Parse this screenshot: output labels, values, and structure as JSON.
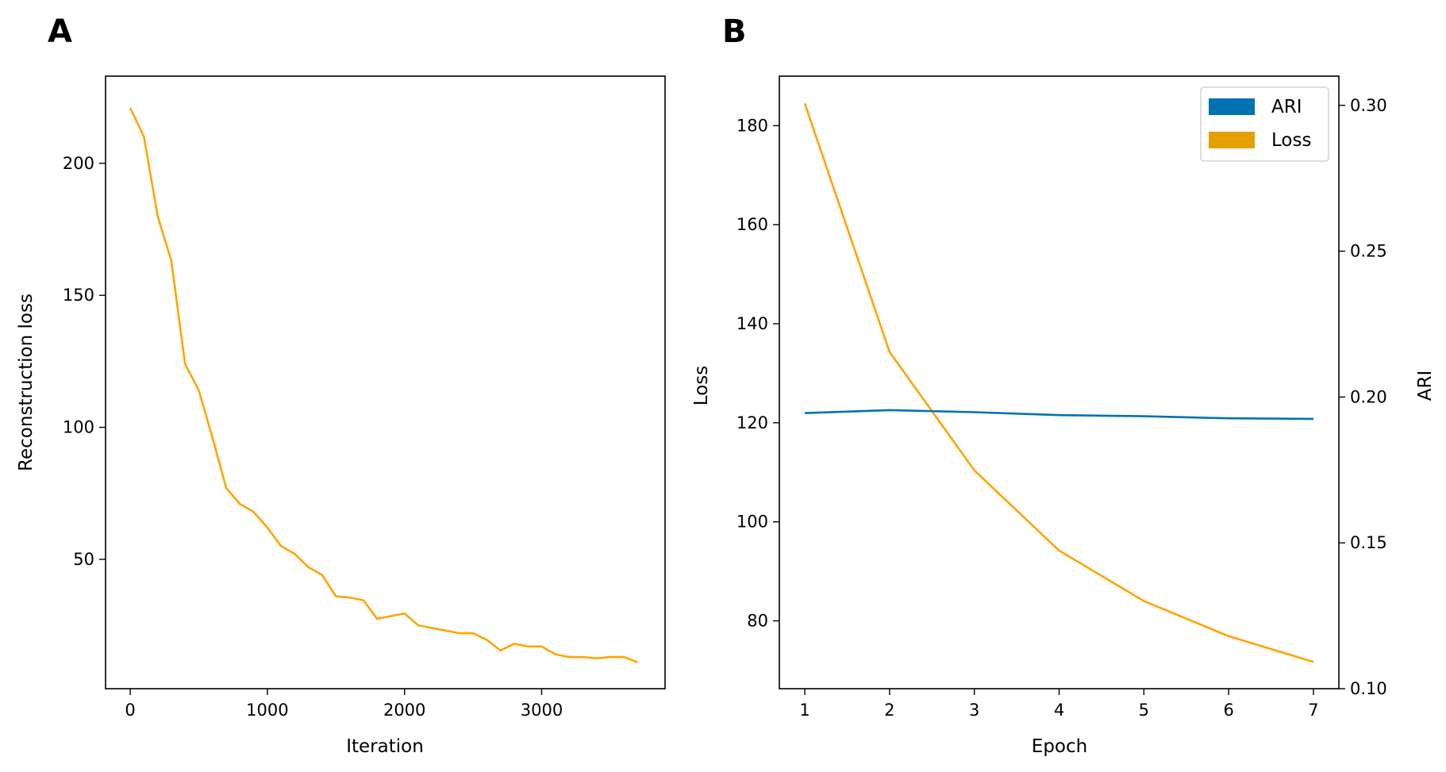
{
  "chart_data": [
    {
      "panel": "A",
      "type": "line",
      "xlabel": "Iteration",
      "ylabel": "Reconstruction loss",
      "xlim": [
        -180,
        3900
      ],
      "ylim": [
        1,
        233
      ],
      "xticks": [
        0,
        1000,
        2000,
        3000
      ],
      "yticks": [
        50,
        100,
        150,
        200
      ],
      "series": [
        {
          "color": "#FFA500",
          "x": [
            0,
            100,
            200,
            300,
            400,
            500,
            600,
            700,
            800,
            900,
            1000,
            1100,
            1200,
            1300,
            1400,
            1500,
            1600,
            1700,
            1800,
            1900,
            2000,
            2100,
            2200,
            2300,
            2400,
            2500,
            2600,
            2700,
            2800,
            2900,
            3000,
            3100,
            3200,
            3300,
            3400,
            3500,
            3600,
            3700
          ],
          "y": [
            221,
            210,
            180,
            163,
            124,
            114,
            96,
            77,
            71,
            68,
            62,
            55,
            52,
            47,
            44,
            36,
            35.5,
            34.5,
            27.5,
            28.5,
            29.5,
            25,
            24,
            23,
            22,
            22,
            19.5,
            15.5,
            18,
            17,
            17,
            14,
            13,
            13,
            12.5,
            13,
            13,
            11
          ]
        }
      ]
    },
    {
      "panel": "B",
      "type": "line",
      "xlabel": "Epoch",
      "ylabel": "Loss",
      "y2label": "ARI",
      "xlim": [
        0.7,
        7.3
      ],
      "ylim": [
        66.3,
        190
      ],
      "y2lim": [
        0.1,
        0.31
      ],
      "xticks": [
        1,
        2,
        3,
        4,
        5,
        6,
        7
      ],
      "yticks": [
        80,
        100,
        120,
        140,
        160,
        180
      ],
      "y2ticks": [
        "0.10",
        "0.15",
        "0.20",
        "0.25",
        "0.30"
      ],
      "legend_position": "upper right",
      "legend": [
        {
          "label": "ARI",
          "color": "#0072B2"
        },
        {
          "label": "Loss",
          "color": "#E69F00"
        }
      ],
      "series": [
        {
          "axis": "left",
          "color": "#FFA500",
          "x": [
            1,
            2,
            3,
            4,
            5,
            6,
            7
          ],
          "y": [
            184.5,
            134.3,
            110.4,
            94.2,
            84.0,
            76.9,
            71.7
          ]
        },
        {
          "axis": "right",
          "color": "#0072B2",
          "x": [
            1,
            2,
            3,
            4,
            5,
            6,
            7
          ],
          "y": [
            0.1945,
            0.1955,
            0.1948,
            0.1938,
            0.1934,
            0.1927,
            0.1925
          ]
        }
      ]
    }
  ]
}
